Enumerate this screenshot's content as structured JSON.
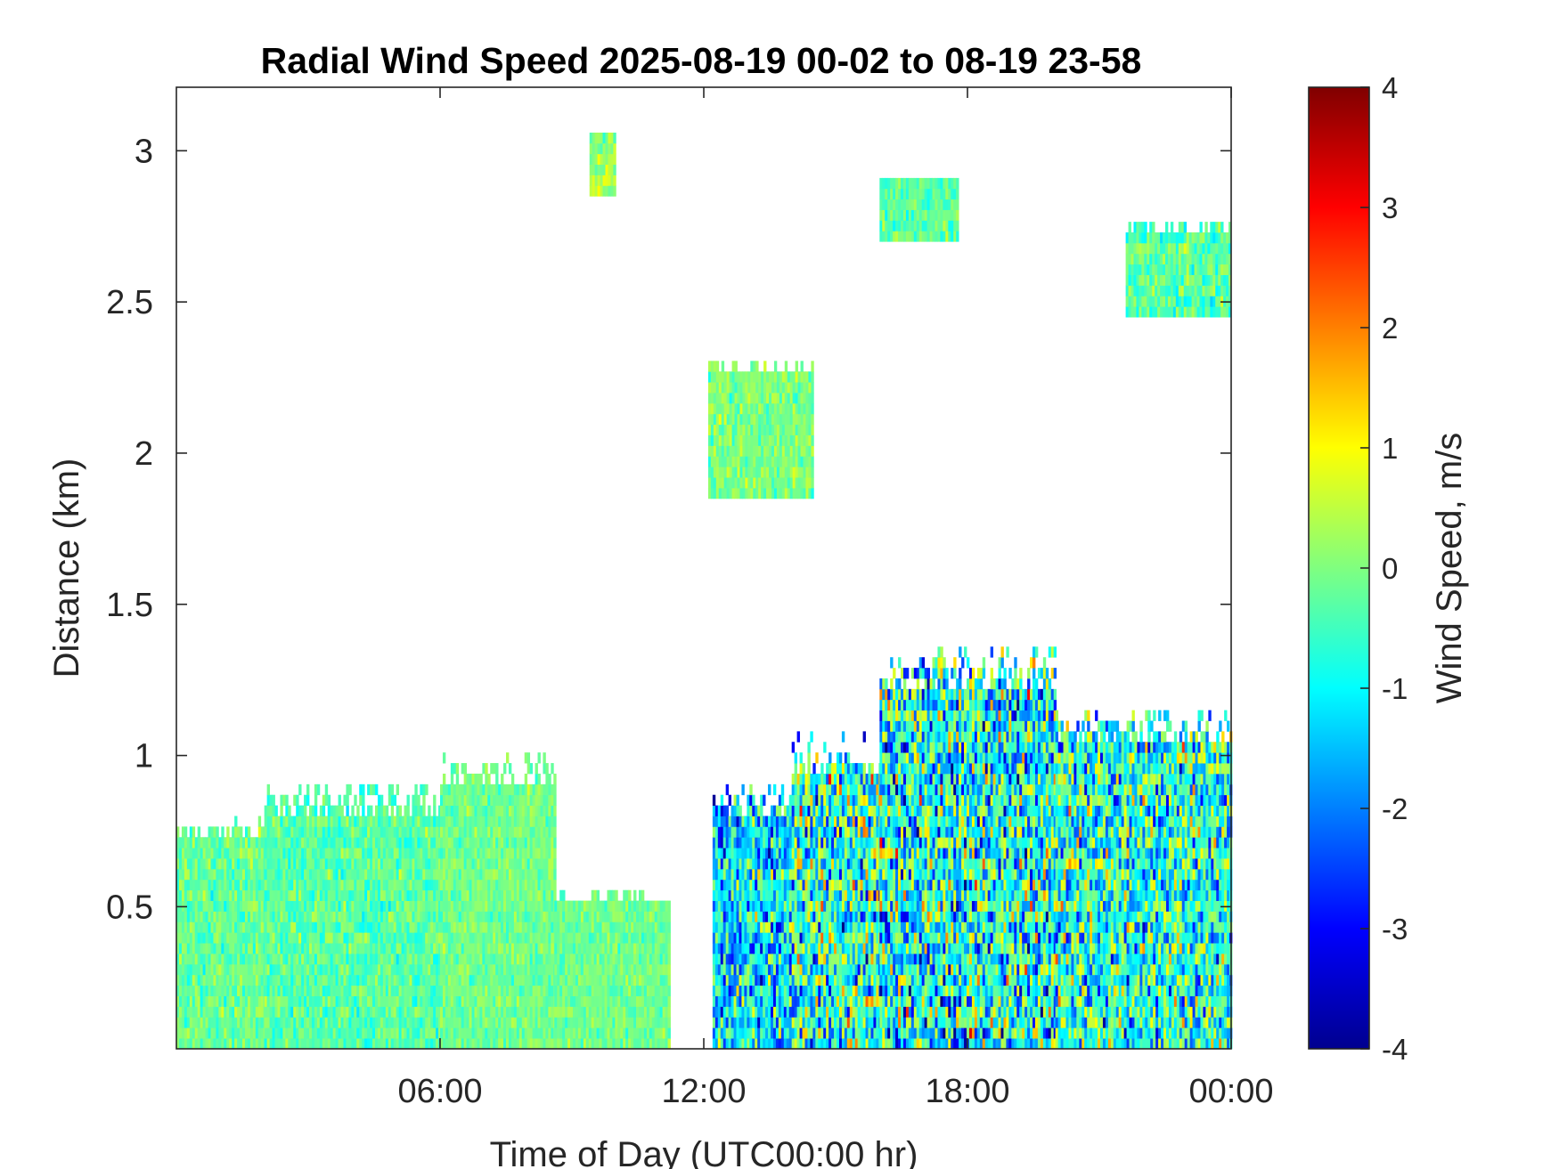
{
  "chart_data": {
    "type": "heatmap",
    "title": "Radial Wind Speed 2025-08-19 00-02 to 08-19 23-58",
    "xlabel": "Time of Day (UTC00:00 hr)",
    "ylabel": "Distance (km)",
    "xlim_hours": [
      0,
      24
    ],
    "ylim": [
      0.03,
      3.21
    ],
    "x_ticks": [
      {
        "hour": 6,
        "label": "06:00"
      },
      {
        "hour": 12,
        "label": "12:00"
      },
      {
        "hour": 18,
        "label": "18:00"
      },
      {
        "hour": 24,
        "label": "00:00"
      }
    ],
    "y_ticks": [
      {
        "value": 0.5,
        "label": "0.5"
      },
      {
        "value": 1,
        "label": "1"
      },
      {
        "value": 1.5,
        "label": "1.5"
      },
      {
        "value": 2,
        "label": "2"
      },
      {
        "value": 2.5,
        "label": "2.5"
      },
      {
        "value": 3,
        "label": "3"
      }
    ],
    "colorbar": {
      "label": "Wind Speed, m/s",
      "colormap": "jet",
      "clim": [
        -4,
        4
      ],
      "ticks": [
        -4,
        -3,
        -2,
        -1,
        0,
        1,
        2,
        3,
        4
      ],
      "tick_labels": [
        "-4",
        "-3",
        "-2",
        "-1",
        "0",
        "1",
        "2",
        "3",
        "4"
      ]
    },
    "grid": false,
    "regions": [
      {
        "hours": [
          0,
          2
        ],
        "km": [
          0.03,
          0.8
        ],
        "mean": -0.2,
        "spread": 0.5
      },
      {
        "hours": [
          2,
          6
        ],
        "km": [
          0.03,
          0.9
        ],
        "mean": -0.3,
        "spread": 0.5
      },
      {
        "hours": [
          6,
          8.6
        ],
        "km": [
          0.03,
          1.0
        ],
        "mean": -0.1,
        "spread": 0.4
      },
      {
        "hours": [
          8.6,
          11.2
        ],
        "km": [
          0.03,
          0.55
        ],
        "mean": -0.1,
        "spread": 0.4
      },
      {
        "hours": [
          12.2,
          14
        ],
        "km": [
          0.03,
          0.9
        ],
        "mean": -1.2,
        "spread": 1.5
      },
      {
        "hours": [
          14,
          16
        ],
        "km": [
          0.03,
          1.05
        ],
        "mean": -0.6,
        "spread": 1.8
      },
      {
        "hours": [
          16,
          20
        ],
        "km": [
          0.03,
          1.35
        ],
        "mean": -0.8,
        "spread": 1.9
      },
      {
        "hours": [
          20,
          24
        ],
        "km": [
          0.03,
          1.15
        ],
        "mean": -0.7,
        "spread": 1.6
      },
      {
        "hours": [
          12.1,
          14.5
        ],
        "km": [
          1.85,
          2.3
        ],
        "mean": 0.0,
        "spread": 0.5
      },
      {
        "hours": [
          9.4,
          10.0
        ],
        "km": [
          2.85,
          3.05
        ],
        "mean": 0.2,
        "spread": 0.5
      },
      {
        "hours": [
          16,
          17.8
        ],
        "km": [
          2.7,
          2.9
        ],
        "mean": -0.3,
        "spread": 0.5
      },
      {
        "hours": [
          21.6,
          24
        ],
        "km": [
          2.45,
          2.75
        ],
        "mean": -0.3,
        "spread": 0.6
      }
    ]
  }
}
